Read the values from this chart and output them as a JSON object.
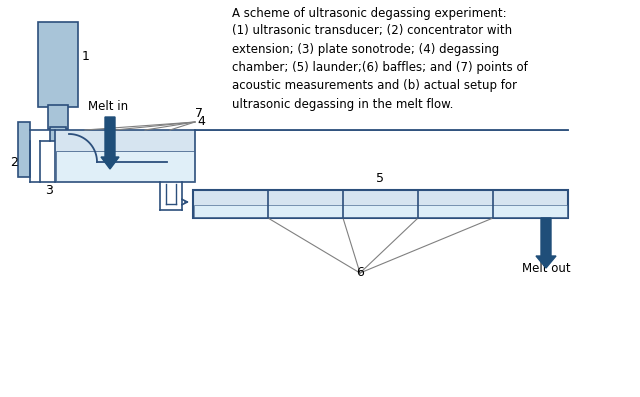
{
  "bg_color": "#ffffff",
  "title_text": "A scheme of ultrasonic degassing experiment:",
  "description": "(1) ultrasonic transducer; (2) concentrator with\nextension; (3) plate sonotrode; (4) degassing\nchamber; (5) launder;(6) baffles; and (7) points of\nacoustic measurements and (b) actual setup for\nultrasonic degassing in the melt flow.",
  "box_fill": "#d6e4f0",
  "box_edge": "#2c4f7c",
  "transducer_fill": "#a8c4d8",
  "transducer_edge": "#2c4f7c",
  "arrow_color": "#1f4e79",
  "gray_line": "#808080",
  "text_color": "#000000"
}
